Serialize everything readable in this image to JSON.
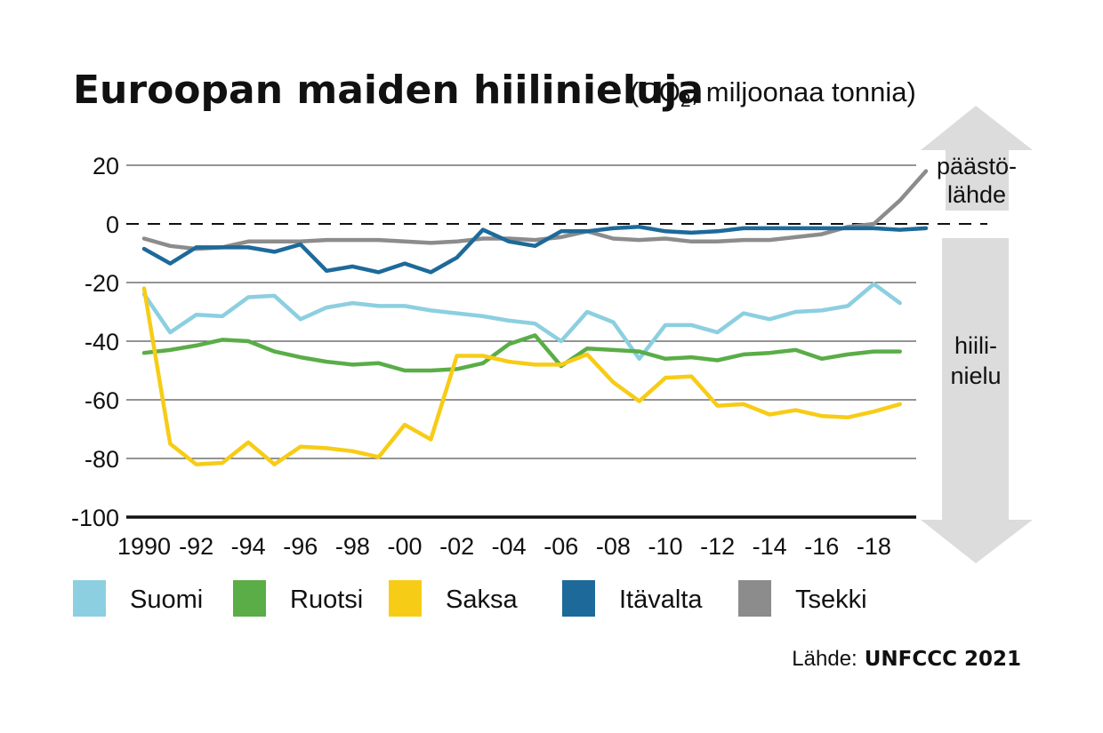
{
  "title": {
    "main": "Euroopan maiden hiilinieluja",
    "sub_prefix": "(CO",
    "sub_subscript": "2",
    "sub_suffix": ", miljoonaa tonnia)"
  },
  "arrows": {
    "up_label_line1": "päästö-",
    "up_label_line2": "lähde",
    "down_label_line1": "hiili-",
    "down_label_line2": "nielu"
  },
  "source": {
    "label": "Lähde:",
    "value": "UNFCCC 2021"
  },
  "colors": {
    "Suomi": "#8ccfe0",
    "Ruotsi": "#5aad47",
    "Saksa": "#f7cc16",
    "Itävalta": "#1d6a9a",
    "Tsekki": "#8c8c8c",
    "arrow": "#dcdcdc"
  },
  "chart_data": {
    "type": "line",
    "x": [
      1990,
      1991,
      1992,
      1993,
      1994,
      1995,
      1996,
      1997,
      1998,
      1999,
      2000,
      2001,
      2002,
      2003,
      2004,
      2005,
      2006,
      2007,
      2008,
      2009,
      2010,
      2011,
      2012,
      2013,
      2014,
      2015,
      2016,
      2017,
      2018,
      2019,
      2020
    ],
    "xtick_values": [
      1990,
      1992,
      1994,
      1996,
      1998,
      2000,
      2002,
      2004,
      2006,
      2008,
      2010,
      2012,
      2014,
      2016,
      2018
    ],
    "xtick_labels": [
      "1990",
      "-92",
      "-94",
      "-96",
      "-98",
      "-00",
      "-02",
      "-04",
      "-06",
      "-08",
      "-10",
      "-12",
      "-14",
      "-16",
      "-18"
    ],
    "ylim": [
      -100,
      20
    ],
    "yticks": [
      20,
      0,
      -20,
      -40,
      -60,
      -80,
      -100
    ],
    "ytick_labels": [
      "20",
      "0",
      "-20",
      "-40",
      "-60",
      "-80",
      "-100"
    ],
    "zero_line": "dashed",
    "grid": true,
    "legend_position": "bottom",
    "series": [
      {
        "name": "Suomi",
        "values": [
          -24,
          -37,
          -31,
          -31.5,
          -25,
          -24.5,
          -32.5,
          -28.5,
          -27,
          -28,
          -28,
          -29.5,
          -30.5,
          -31.5,
          -33,
          -34,
          -40,
          -30,
          -33.5,
          -46,
          -34.5,
          -34.5,
          -37,
          -30.5,
          -32.5,
          -30,
          -29.5,
          -28,
          -20.5,
          -27,
          null
        ]
      },
      {
        "name": "Ruotsi",
        "values": [
          -44,
          -43,
          -41.5,
          -39.5,
          -40,
          -43.5,
          -45.5,
          -47,
          -48,
          -47.5,
          -50,
          -50,
          -49.5,
          -47.5,
          -41,
          -38,
          -48.5,
          -42.5,
          -43,
          -43.5,
          -46,
          -45.5,
          -46.5,
          -44.5,
          -44,
          -43,
          -46,
          -44.5,
          -43.5,
          -43.5,
          null
        ]
      },
      {
        "name": "Saksa",
        "values": [
          -22,
          -75,
          -82,
          -81.5,
          -74.5,
          -82,
          -76,
          -76.5,
          -77.5,
          -79.5,
          -68.5,
          -73.5,
          -45,
          -45,
          -47,
          -48,
          -48,
          -44.5,
          -54,
          -60.5,
          -52.5,
          -52,
          -62,
          -61.5,
          -65,
          -63.5,
          -65.5,
          -66,
          -64,
          -61.5,
          null
        ]
      },
      {
        "name": "Itävalta",
        "values": [
          -8.5,
          -13.5,
          -8,
          -8,
          -8,
          -9.5,
          -7,
          -16,
          -14.5,
          -16.5,
          -13.5,
          -16.5,
          -11.5,
          -2,
          -6,
          -7.5,
          -2.5,
          -2.5,
          -1.5,
          -1,
          -2.5,
          -3,
          -2.5,
          -1.5,
          -1.5,
          -1.5,
          -1.5,
          -1.5,
          -1.5,
          -2,
          -1.5
        ]
      },
      {
        "name": "Tsekki",
        "values": [
          -5,
          -7.5,
          -8.5,
          -8,
          -6,
          -6,
          -6,
          -5.5,
          -5.5,
          -5.5,
          -6,
          -6.5,
          -6,
          -5,
          -5,
          -5.5,
          -4.5,
          -2.5,
          -5,
          -5.5,
          -5,
          -6,
          -6,
          -5.5,
          -5.5,
          -4.5,
          -3.5,
          -1,
          0,
          8,
          18
        ]
      }
    ]
  }
}
